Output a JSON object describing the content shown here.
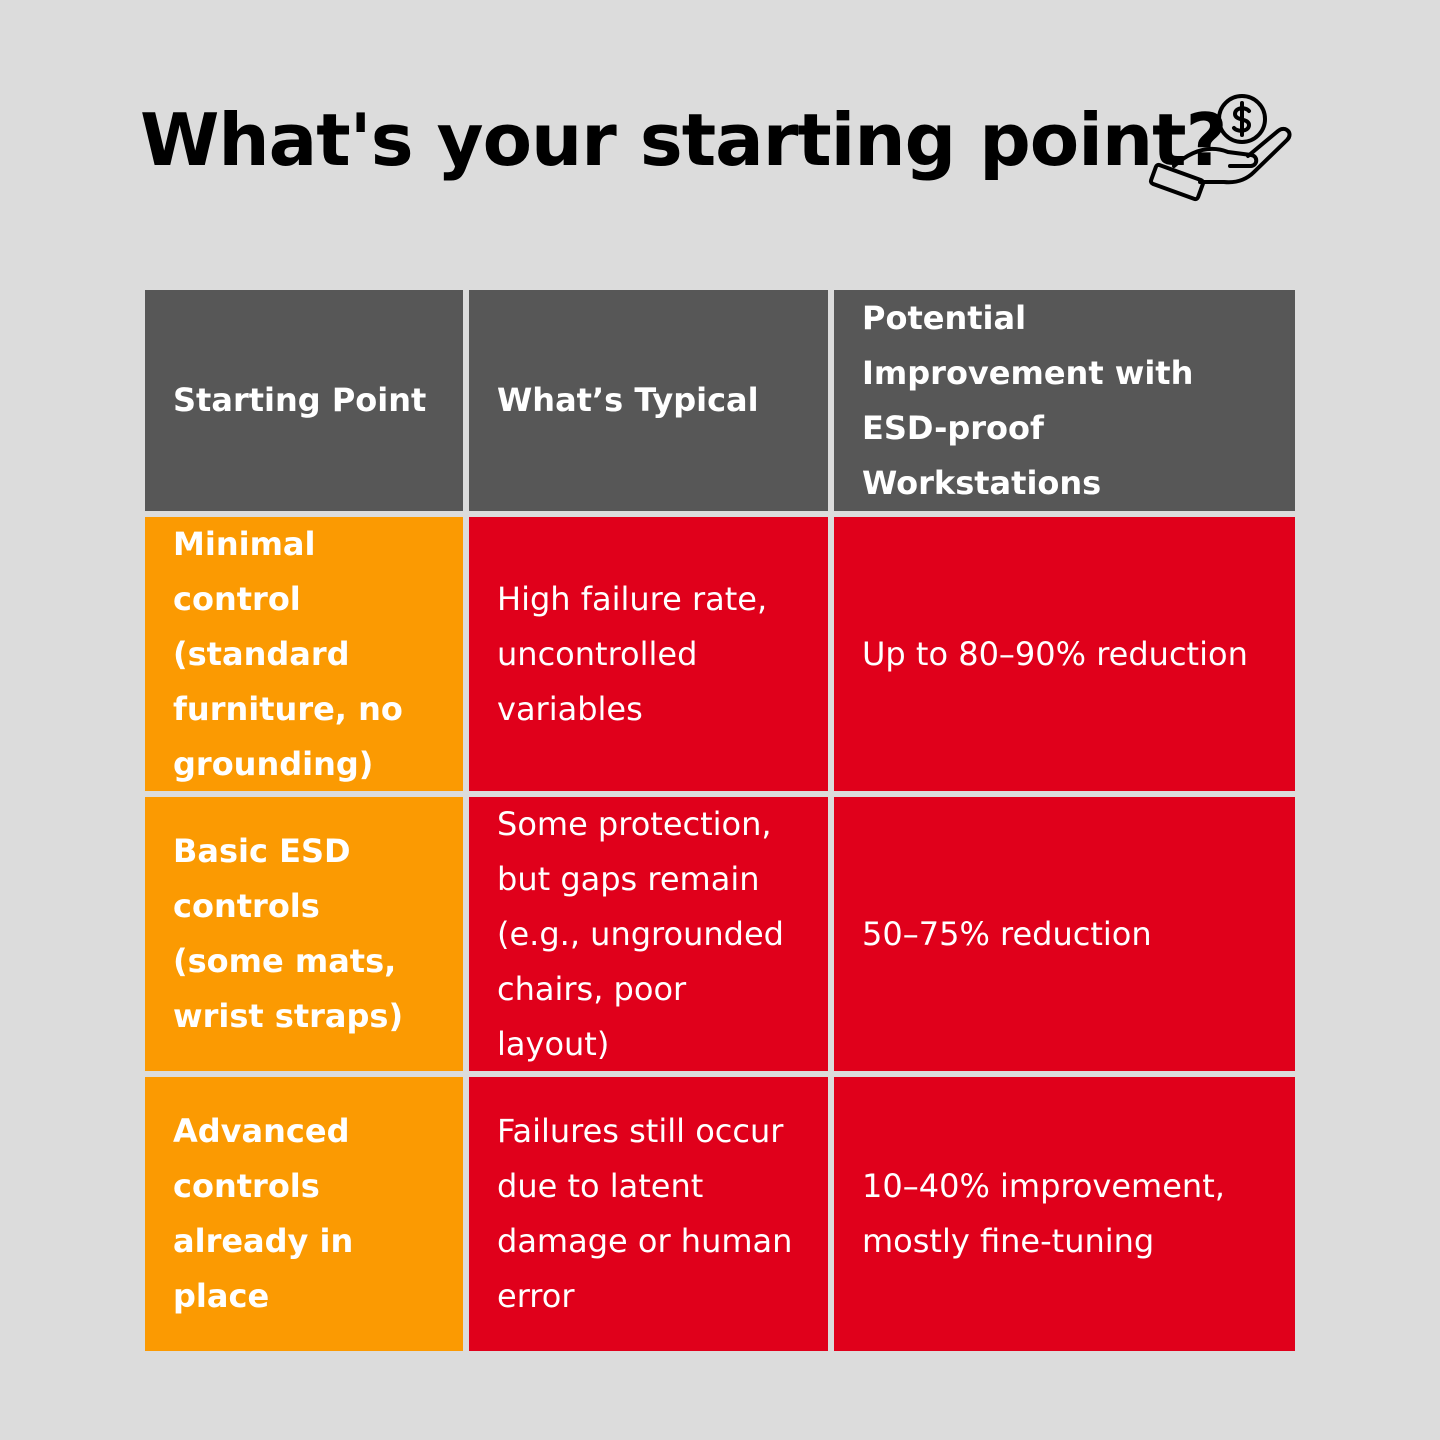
{
  "title": "What's your starting point?",
  "icon": "hand-holding-dollar-icon",
  "colors": {
    "background": "#dcdcdc",
    "header": "#575757",
    "starting_point": "#fb9a02",
    "cells": "#e0001b",
    "text": "#ffffff"
  },
  "table": {
    "headers": [
      "Starting Point",
      "What’s Typical",
      "Potential Improvement with ESD-proof Workstations"
    ],
    "rows": [
      {
        "starting_point": "Minimal control (standard furniture, no grounding)",
        "typical": "High failure rate, uncontrolled variables",
        "improvement": "Up to 80–90% reduction"
      },
      {
        "starting_point": "Basic ESD controls (some mats, wrist straps)",
        "typical": "Some protection, but gaps remain (e.g., ungrounded chairs, poor layout)",
        "improvement": "50–75% reduction"
      },
      {
        "starting_point": "Advanced controls already in place",
        "typical": "Failures still occur due to latent damage or human error",
        "improvement": "10–40% improvement, mostly fine-tuning"
      }
    ]
  }
}
